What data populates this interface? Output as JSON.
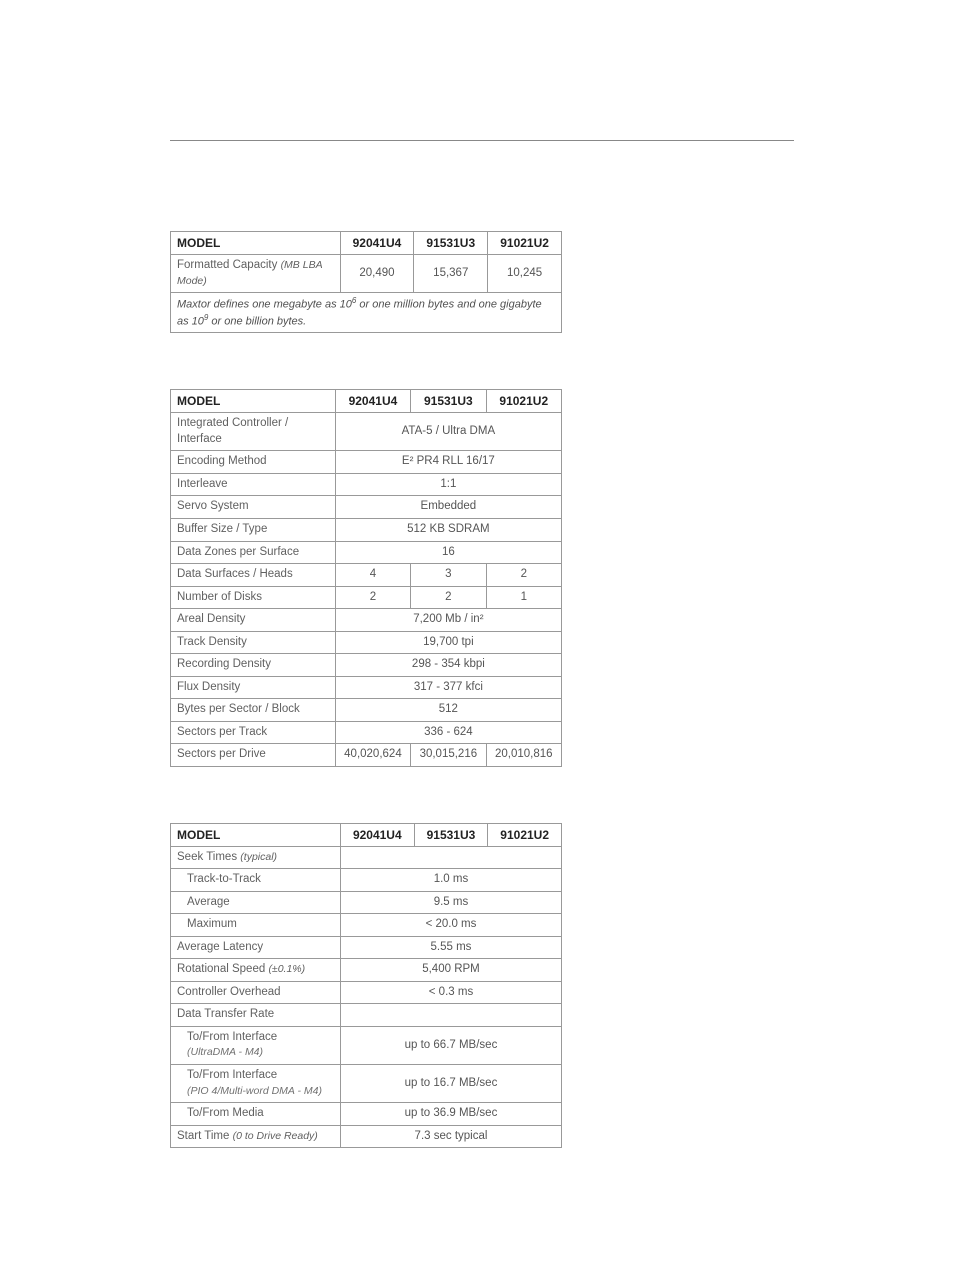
{
  "models": {
    "a": "92041U4",
    "b": "91531U3",
    "c": "91021U2"
  },
  "table1": {
    "header": "MODEL",
    "row_label": "Formatted Capacity",
    "row_label_note": "(MB LBA Mode)",
    "vals": [
      "20,490",
      "15,367",
      "10,245"
    ],
    "footnote_a": "Maxtor defines one megabyte as 10",
    "footnote_a_sup": "6",
    "footnote_a2": " or one million bytes and one gigabyte as 10",
    "footnote_b_sup": "9",
    "footnote_b": " or one billion bytes."
  },
  "table2": {
    "header": "MODEL",
    "rows": [
      {
        "label": "Integrated Controller / Interface",
        "span": "ATA-5 / Ultra DMA"
      },
      {
        "label": "Encoding Method",
        "span": "E² PR4 RLL 16/17"
      },
      {
        "label": "Interleave",
        "span": "1:1"
      },
      {
        "label": "Servo System",
        "span": "Embedded"
      },
      {
        "label": "Buffer Size / Type",
        "span": "512 KB SDRAM"
      },
      {
        "label": "Data Zones per Surface",
        "span": "16"
      },
      {
        "label": "Data Surfaces / Heads",
        "vals": [
          "4",
          "3",
          "2"
        ]
      },
      {
        "label": "Number of Disks",
        "vals": [
          "2",
          "2",
          "1"
        ]
      },
      {
        "label": "Areal Density",
        "span": "7,200 Mb / in²"
      },
      {
        "label": "Track Density",
        "span": "19,700 tpi"
      },
      {
        "label": "Recording Density",
        "span": "298 - 354 kbpi"
      },
      {
        "label": "Flux Density",
        "span": "317 - 377 kfci"
      },
      {
        "label": "Bytes per Sector / Block",
        "span": "512"
      },
      {
        "label": "Sectors per Track",
        "span": "336 - 624"
      },
      {
        "label": "Sectors per Drive",
        "vals": [
          "40,020,624",
          "30,015,216",
          "20,010,816"
        ]
      }
    ]
  },
  "table3": {
    "header": "MODEL",
    "rows": [
      {
        "label": "Seek Times",
        "label_note": "(typical)",
        "blank": true
      },
      {
        "label": "Track-to-Track",
        "indent": true,
        "span": "1.0 ms"
      },
      {
        "label": "Average",
        "indent": true,
        "span": "9.5 ms"
      },
      {
        "label": "Maximum",
        "indent": true,
        "span": "< 20.0 ms"
      },
      {
        "label": "Average Latency",
        "span": "5.55 ms"
      },
      {
        "label": "Rotational Speed",
        "label_note": "(±0.1%)",
        "span": "5,400 RPM"
      },
      {
        "label": "Controller Overhead",
        "span": "< 0.3 ms"
      },
      {
        "label": "Data Transfer Rate",
        "blank": true
      },
      {
        "label": "To/From Interface",
        "sublabel": "(UltraDMA - M4)",
        "indent": true,
        "span": "up to 66.7 MB/sec"
      },
      {
        "label": "To/From Interface",
        "sublabel": "(PIO 4/Multi-word DMA - M4)",
        "indent": true,
        "span": "up to 16.7 MB/sec"
      },
      {
        "label": "To/From Media",
        "indent": true,
        "span": "up to 36.9 MB/sec"
      },
      {
        "label": "Start Time",
        "label_note": "(0 to Drive Ready)",
        "span": "7.3 sec typical"
      }
    ]
  }
}
